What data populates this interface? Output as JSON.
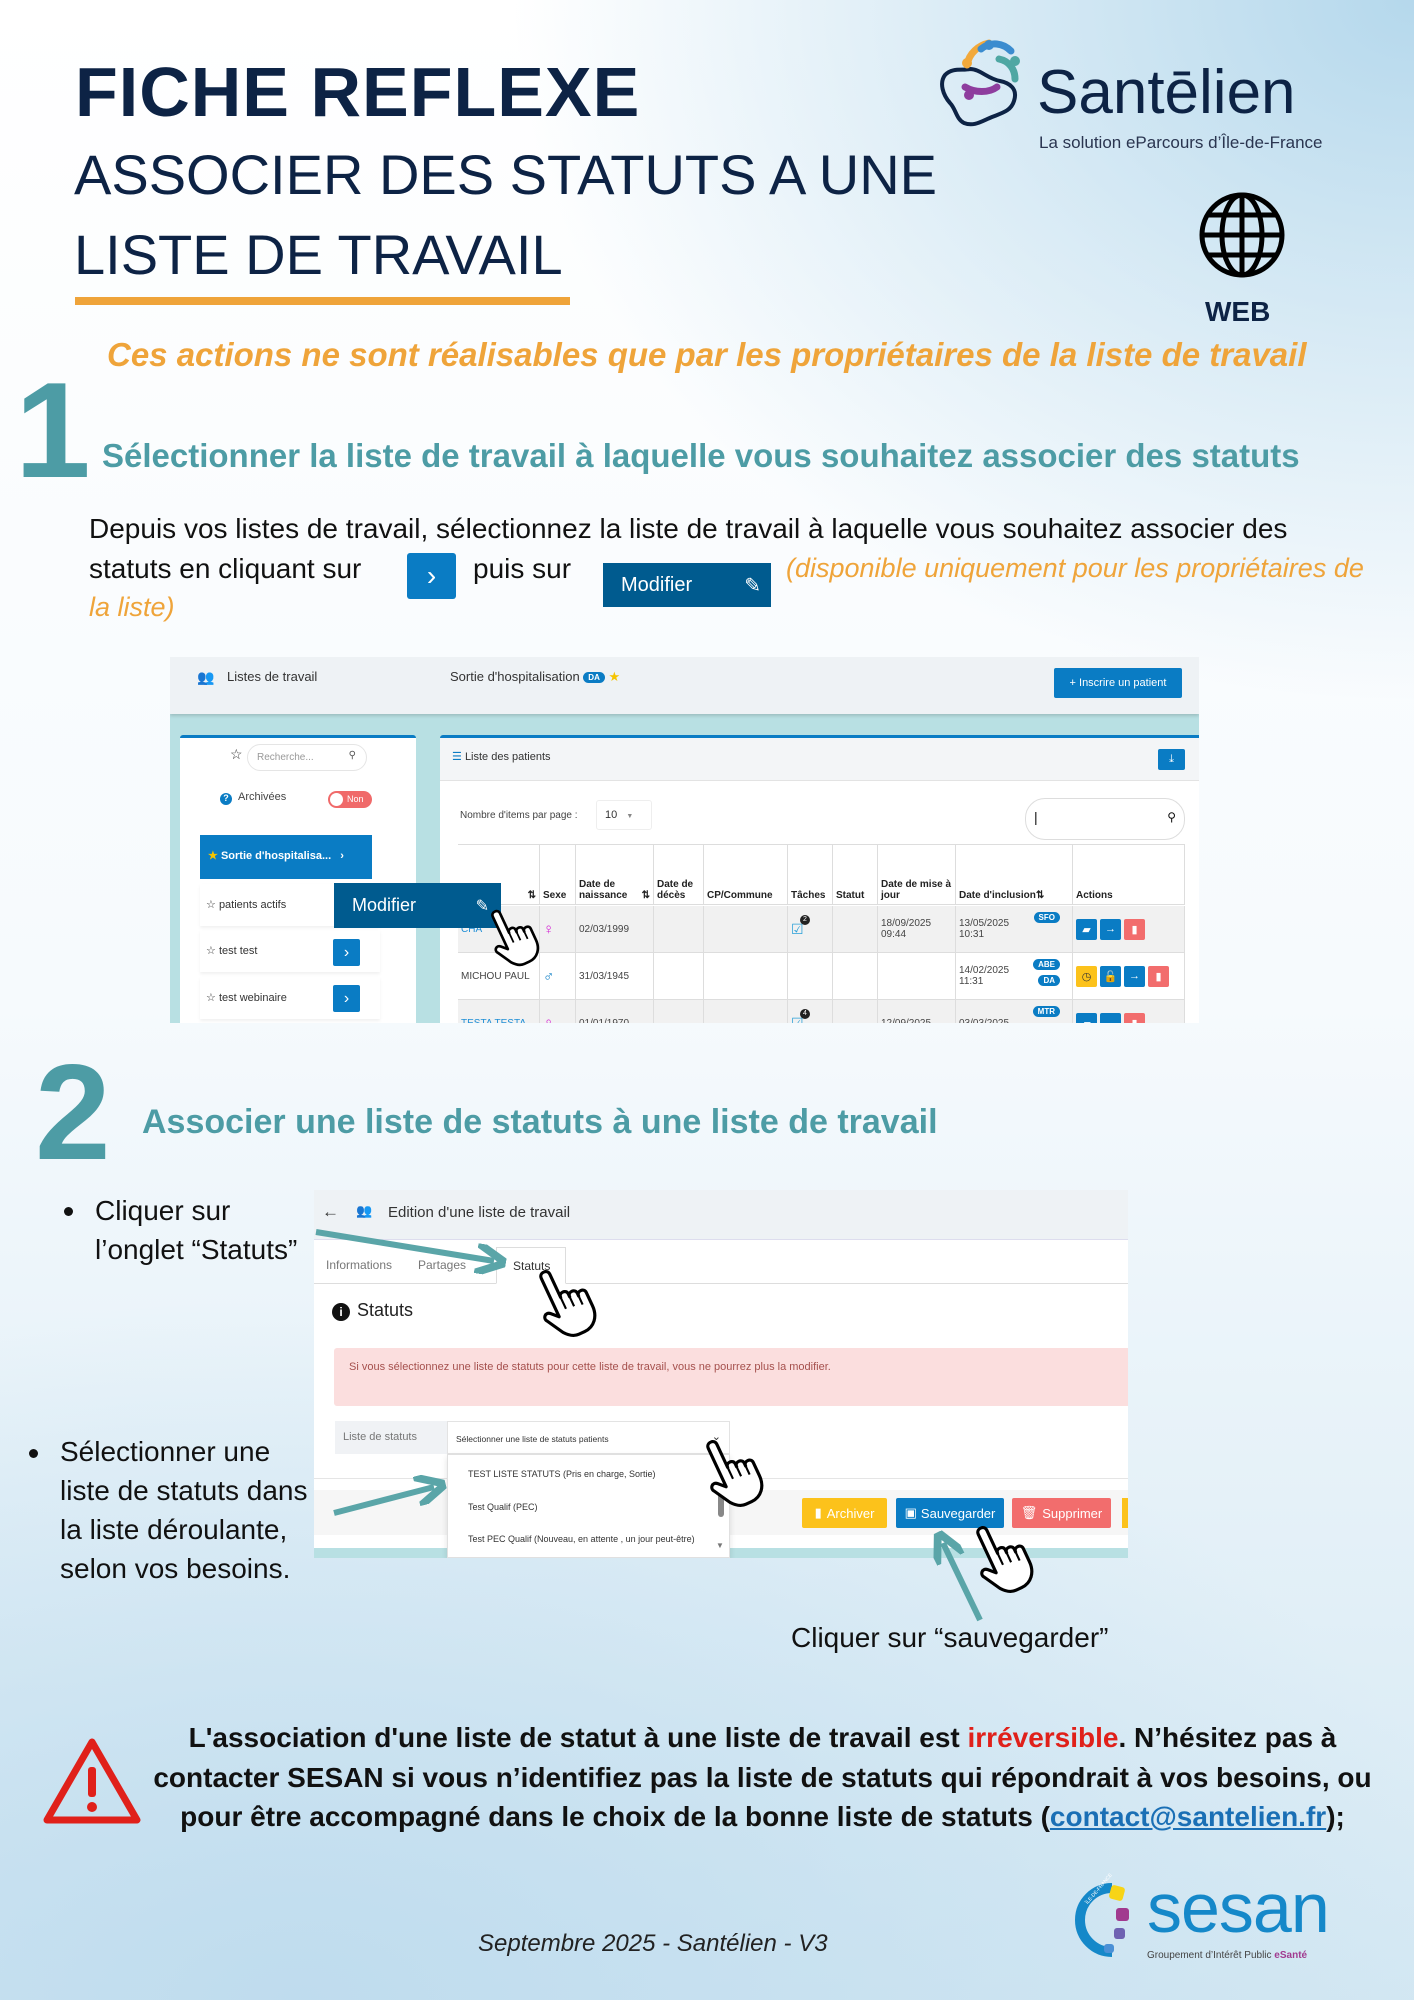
{
  "header": {
    "title": "FICHE REFLEXE",
    "subtitle_line1": "ASSOCIER DES STATUTS A UNE",
    "subtitle_line2": "LISTE DE TRAVAIL",
    "platform_label": "WEB",
    "platform_icon": "globe-icon"
  },
  "logo": {
    "name": "Santēlien",
    "tagline": "La solution eParcours d’Île-de-France"
  },
  "notice": "Ces actions ne sont réalisables que par les propriétaires de la liste de travail",
  "step1": {
    "number": "1",
    "title": "Sélectionner la liste de travail à laquelle vous souhaitez associer des statuts",
    "line1": "Depuis vos listes de travail, sélectionnez la liste de travail à laquelle vous souhaitez associer des",
    "line2_a": "statuts en cliquant sur",
    "line2_b": "puis sur",
    "modifier_label": "Modifier",
    "note_a": "(disponible uniquement pour les propriétaires de",
    "note_b": "la liste)",
    "screenshot": {
      "nav_title": "Listes de travail",
      "list_title": "Sortie d'hospitalisation",
      "list_badge": "DA",
      "register_button": "+ Inscrire un patient",
      "search_placeholder": "Recherche...",
      "archived_label": "Archivées",
      "archived_toggle": "Non",
      "lists": [
        "Sortie d'hospitalisa...",
        "patients actifs",
        "test test",
        "test webinaire"
      ],
      "modifier_label": "Modifier",
      "panel_title": "Liste des patients",
      "items_per_page_label": "Nombre d'items par page :",
      "items_per_page": "10",
      "table_search_value": "|",
      "columns": [
        "",
        "Sexe",
        "Date de naissance",
        "Date de décès",
        "CP/Commune",
        "Tâches",
        "Statut",
        "Date de mise à jour",
        "Date d'inclusion",
        "Actions"
      ],
      "rows": [
        {
          "name": "CHA",
          "sex": "♀",
          "birth": "02/03/1999",
          "tasks": "2",
          "updated": [
            "18/09/2025",
            "09:44"
          ],
          "inclusion": [
            "13/05/2025",
            "10:31"
          ],
          "badges": [
            "SFO"
          ]
        },
        {
          "name": "MICHOU PAUL",
          "sex": "♂",
          "birth": "31/03/1945",
          "tasks": "",
          "updated": [
            "",
            ""
          ],
          "inclusion": [
            "14/02/2025",
            "11:31"
          ],
          "badges": [
            "ABE",
            "DA"
          ]
        },
        {
          "name": "TESTA TESTA",
          "sex": "♀",
          "birth": "01/01/1970",
          "tasks": "4",
          "updated": [
            "12/09/2025",
            ""
          ],
          "inclusion": [
            "03/03/2025",
            ""
          ],
          "badges": [
            "MTR"
          ]
        }
      ]
    }
  },
  "step2": {
    "number": "2",
    "title": "Associer une liste de statuts à une liste de travail",
    "bullet1": [
      "Cliquer sur",
      "l’onglet “Statuts”"
    ],
    "bullet2": [
      "Sélectionner une",
      "liste de statuts dans",
      "la liste déroulante,",
      "selon vos besoins."
    ],
    "save_caption": "Cliquer sur “sauvegarder”",
    "screenshot": {
      "title": "Edition d'une liste de travail",
      "tabs": [
        "Informations",
        "Partages",
        "Statuts"
      ],
      "section_title": "Statuts",
      "alert": "Si vous sélectionnez une liste de statuts pour cette liste de travail, vous ne pourrez plus la modifier.",
      "field_label": "Liste de statuts",
      "select_placeholder": "Sélectionner une liste de statuts patients",
      "options": [
        "TEST LISTE STATUTS (Pris en charge, Sortie)",
        "Test Qualif (PEC)",
        "Test PEC Qualif (Nouveau, en attente , un jour peut-être)"
      ],
      "archive_button": "Archiver",
      "save_button": "Sauvegarder",
      "delete_button": "Supprimer"
    }
  },
  "warning": {
    "text_a": "L'association d'une liste de statut à une liste de travail est ",
    "highlight": "irréversible",
    "text_b": ". N’hésitez pas à contacter SESAN si vous n’identifiez pas la liste de statuts qui répondrait à vos besoins, ou pour être accompagné dans le choix de la bonne liste de statuts (",
    "email": "contact@santelien.fr",
    "text_c": ");"
  },
  "footer": {
    "text": "Septembre 2025 - Santélien - V3",
    "sesan_name": "sesan",
    "sesan_tagline_a": "Groupement d’Intérêt Public ",
    "sesan_tagline_b": "eSanté",
    "sesan_ring": "ÎLE-DE-FRANCE"
  },
  "colors": {
    "navy": "#0d2345",
    "teal": "#4d9ca5",
    "orange": "#efa43a",
    "app_blue": "#0a7cc4",
    "danger": "#e0201a"
  }
}
